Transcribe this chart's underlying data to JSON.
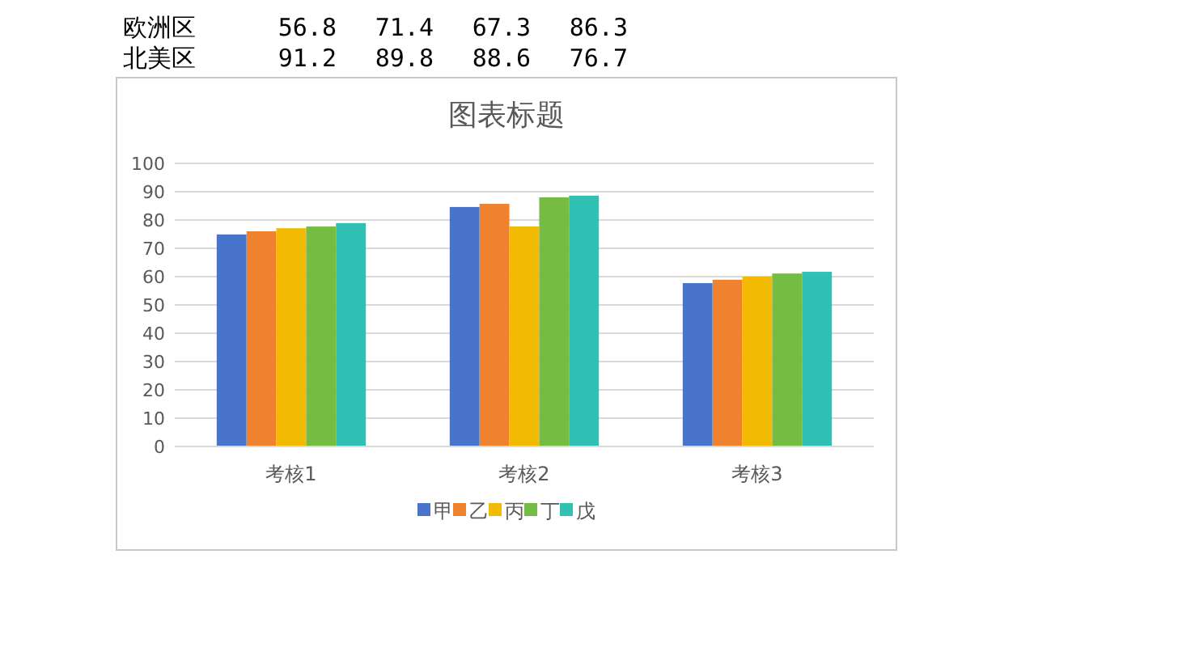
{
  "chart_data": {
    "type": "bar",
    "title": "图表标题",
    "categories": [
      "考核1",
      "考核2",
      "考核3"
    ],
    "series": [
      {
        "name": "甲",
        "color": "#4874cb",
        "values": [
          74.9,
          84.6,
          57.7
        ]
      },
      {
        "name": "乙",
        "color": "#ee822f",
        "values": [
          76,
          85.7,
          58.9
        ]
      },
      {
        "name": "丙",
        "color": "#f2ba02",
        "values": [
          77.1,
          77.7,
          60
        ]
      },
      {
        "name": "丁",
        "color": "#75bd42",
        "values": [
          77.7,
          88,
          61.1
        ]
      },
      {
        "name": "戊",
        "color": "#30c0b4",
        "values": [
          78.9,
          88.6,
          61.7
        ]
      }
    ],
    "ylim": [
      0,
      100
    ],
    "yticks": [
      0,
      10,
      20,
      30,
      40,
      50,
      60,
      70,
      80,
      90,
      100
    ],
    "grid": "y",
    "legend": "bottom",
    "annotations": [
      "欧洲区",
      "56.8",
      "71.4",
      "67.3",
      "86.3",
      "北美区",
      "91.2",
      "89.8",
      "88.6",
      "76.7"
    ]
  }
}
